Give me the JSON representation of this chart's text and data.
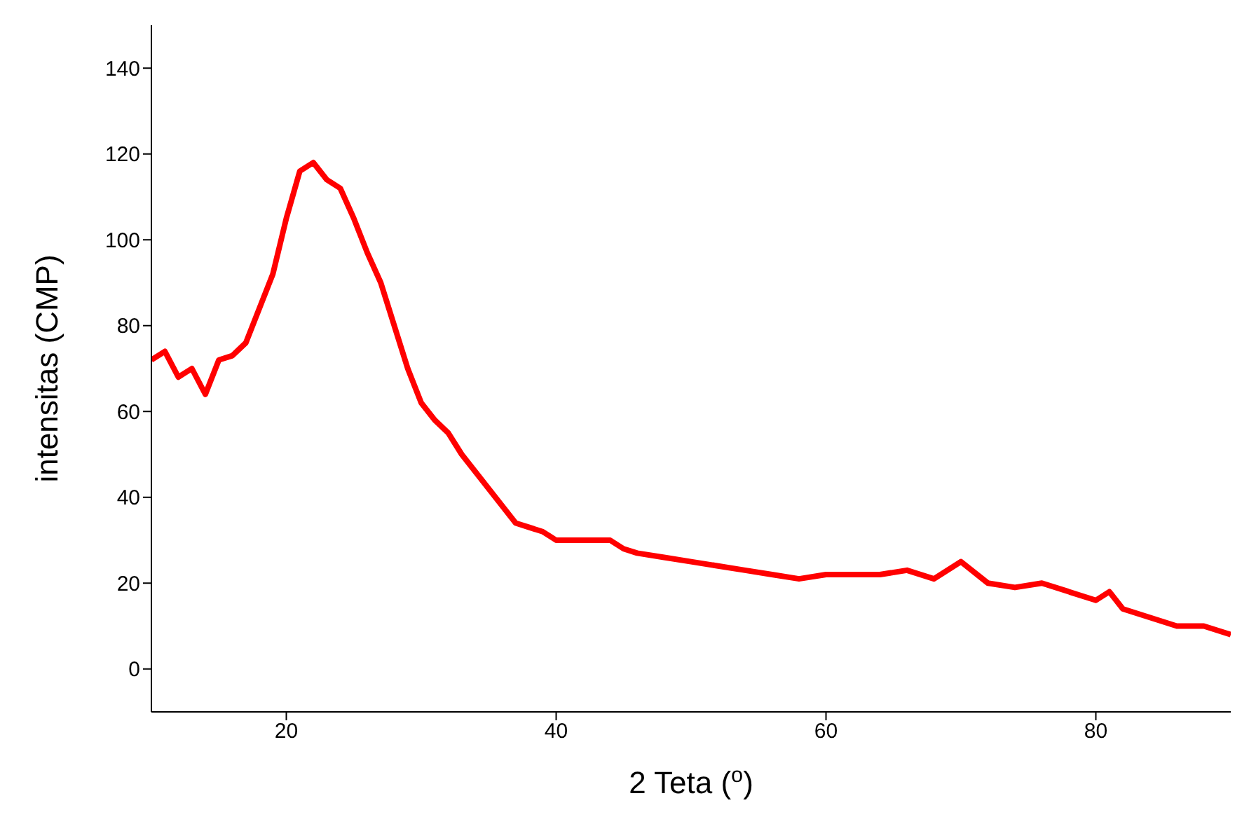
{
  "chart_data": {
    "type": "line",
    "xlabel": "2 Teta ($^{o}$)",
    "ylabel": "intensitas (CMP)",
    "xlim": [
      10,
      90
    ],
    "ylim": [
      -10,
      150
    ],
    "xticks": [
      20,
      40,
      60,
      80
    ],
    "yticks": [
      0,
      20,
      40,
      60,
      80,
      100,
      120,
      140
    ],
    "grid": false,
    "legend": false,
    "marker": "none",
    "line_style": "solid",
    "series": [
      {
        "color": "#ff0000",
        "x": [
          10,
          11,
          12,
          13,
          14,
          15,
          16,
          17,
          18,
          19,
          20,
          21,
          22,
          23,
          24,
          25,
          26,
          27,
          28,
          29,
          30,
          31,
          32,
          33,
          34,
          35,
          36,
          37,
          38,
          39,
          40,
          42,
          44,
          45,
          46,
          48,
          50,
          52,
          54,
          56,
          58,
          60,
          62,
          64,
          66,
          68,
          70,
          72,
          74,
          76,
          78,
          80,
          81,
          82,
          84,
          86,
          88,
          90
        ],
        "values": [
          72,
          74,
          68,
          70,
          64,
          72,
          73,
          76,
          84,
          92,
          105,
          116,
          118,
          114,
          112,
          105,
          97,
          90,
          80,
          70,
          62,
          58,
          55,
          50,
          46,
          42,
          38,
          34,
          33,
          32,
          30,
          30,
          30,
          28,
          27,
          26,
          25,
          24,
          23,
          22,
          21,
          22,
          22,
          22,
          23,
          21,
          25,
          20,
          19,
          20,
          18,
          16,
          18,
          14,
          12,
          10,
          10,
          8
        ]
      }
    ]
  }
}
